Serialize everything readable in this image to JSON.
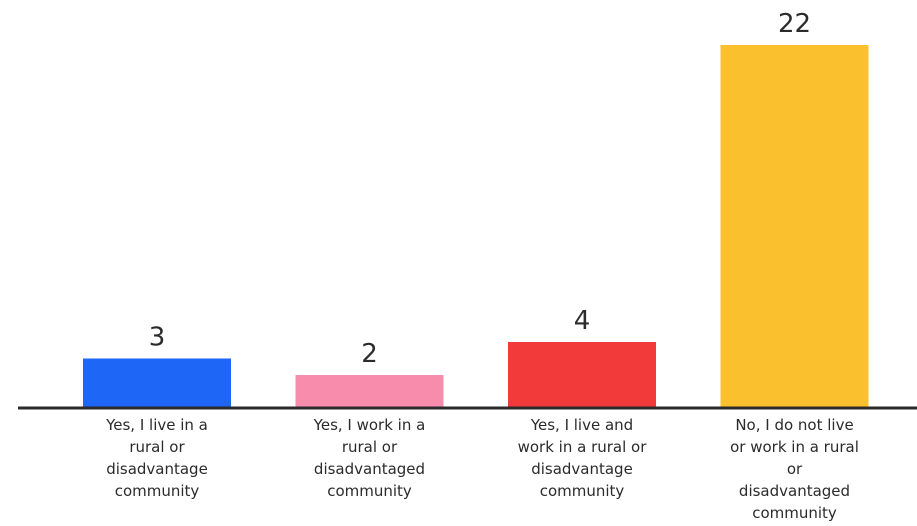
{
  "chart_data": {
    "type": "bar",
    "categories": [
      [
        "Yes, I live in a",
        "rural or",
        "disadvantage",
        "community"
      ],
      [
        "Yes, I work in a",
        "rural or",
        "disadvantaged",
        "community"
      ],
      [
        "Yes, I live and",
        "work in a rural or",
        "disadvantage",
        "community"
      ],
      [
        "No, I do not live",
        "or work in a rural",
        "or",
        "disadvantaged",
        "community"
      ]
    ],
    "values": [
      3,
      2,
      4,
      22
    ],
    "data_labels": [
      "3",
      "2",
      "4",
      "22"
    ],
    "colors": [
      "#1e66f5",
      "#f78cac",
      "#f23a3a",
      "#fbc02d"
    ],
    "axis_color": "#2b2b2b",
    "ylim": [
      0,
      22
    ],
    "grid": false,
    "legend": false
  }
}
